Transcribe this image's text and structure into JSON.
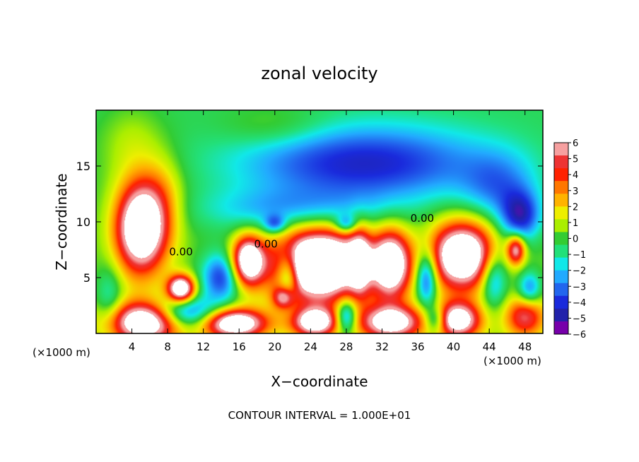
{
  "chart_data": {
    "type": "heatmap",
    "title": "zonal velocity",
    "xlabel": "X−coordinate",
    "ylabel": "Z−coordinate",
    "x_unit_left": "(×1000 m)",
    "x_unit_right": "(×1000 m)",
    "footer": "CONTOUR INTERVAL = 1.000E+01",
    "xlim": [
      0,
      50
    ],
    "ylim": [
      0,
      20
    ],
    "x_ticks": [
      4,
      8,
      12,
      16,
      20,
      24,
      28,
      32,
      36,
      40,
      44,
      48
    ],
    "y_ticks": [
      5,
      10,
      15
    ],
    "contour_labels": [
      {
        "text": "0.00",
        "x": 9.5,
        "y": 7.0
      },
      {
        "text": "0.00",
        "x": 19.0,
        "y": 7.7
      },
      {
        "text": "0.00",
        "x": 36.5,
        "y": 10.0
      }
    ],
    "colorbar": {
      "ticks": [
        "6",
        "5",
        "4",
        "3",
        "2",
        "1",
        "0",
        "−1",
        "−2",
        "−3",
        "−4",
        "−5",
        "−6"
      ],
      "range": [
        -6,
        6
      ],
      "colors": [
        "#f6a0a0",
        "#ee3333",
        "#ff2200",
        "#ff7700",
        "#ffb300",
        "#eeee00",
        "#aaee00",
        "#33cc33",
        "#22e07a",
        "#11e8e8",
        "#22aaff",
        "#2266ee",
        "#1a2adc",
        "#2222aa",
        "#7700aa"
      ]
    },
    "field_blobs": [
      {
        "x": 5,
        "y": 9.5,
        "rx": 2.8,
        "ry": 4.0,
        "v": 10
      },
      {
        "x": 9.5,
        "y": 4,
        "rx": 1.5,
        "ry": 1.2,
        "v": 9
      },
      {
        "x": 5.5,
        "y": 1,
        "rx": 4.0,
        "ry": 1.8,
        "v": 9
      },
      {
        "x": 15.5,
        "y": 0.9,
        "rx": 3.5,
        "ry": 1.3,
        "v": 9
      },
      {
        "x": 25,
        "y": 6.2,
        "rx": 5.0,
        "ry": 3.2,
        "v": 12
      },
      {
        "x": 17,
        "y": 6.5,
        "rx": 1.8,
        "ry": 2.2,
        "v": 9
      },
      {
        "x": 33,
        "y": 6.2,
        "rx": 2.2,
        "ry": 3.0,
        "v": 9
      },
      {
        "x": 41,
        "y": 7,
        "rx": 3.6,
        "ry": 3.0,
        "v": 10
      },
      {
        "x": 47,
        "y": 7.5,
        "rx": 1.0,
        "ry": 1.3,
        "v": 6
      },
      {
        "x": 33,
        "y": 1,
        "rx": 3.5,
        "ry": 1.5,
        "v": 8
      },
      {
        "x": 24.5,
        "y": 1,
        "rx": 2.5,
        "ry": 1.3,
        "v": 8
      },
      {
        "x": 40.5,
        "y": 1.2,
        "rx": 2.5,
        "ry": 1.6,
        "v": 8
      },
      {
        "x": 48,
        "y": 1.5,
        "rx": 2.2,
        "ry": 1.8,
        "v": 5
      },
      {
        "x": 21,
        "y": 3.2,
        "rx": 1.2,
        "ry": 1.0,
        "v": 5
      },
      {
        "x": 29.5,
        "y": 6.5,
        "rx": 1.2,
        "ry": 3.0,
        "v": 5
      },
      {
        "x": 30,
        "y": 15.2,
        "rx": 14,
        "ry": 3.4,
        "v": -4.5
      },
      {
        "x": 47.5,
        "y": 10.5,
        "rx": 2.2,
        "ry": 2.2,
        "v": -4.5
      },
      {
        "x": 14,
        "y": 5,
        "rx": 2.2,
        "ry": 2.2,
        "v": -4.5
      },
      {
        "x": 10,
        "y": 1.8,
        "rx": 3.5,
        "ry": 1.5,
        "v": -5
      },
      {
        "x": 21.5,
        "y": 5.2,
        "rx": 1.2,
        "ry": 2.2,
        "v": -5
      },
      {
        "x": 28,
        "y": 1.5,
        "rx": 1.2,
        "ry": 1.5,
        "v": -5
      },
      {
        "x": 37,
        "y": 5,
        "rx": 1.2,
        "ry": 2.5,
        "v": -5
      },
      {
        "x": 38,
        "y": 1.2,
        "rx": 1.2,
        "ry": 1.2,
        "v": -4
      },
      {
        "x": 44.5,
        "y": 5,
        "rx": 1.5,
        "ry": 2.5,
        "v": -4
      },
      {
        "x": 48.5,
        "y": 4,
        "rx": 1.3,
        "ry": 1.5,
        "v": -3.5
      },
      {
        "x": 1.5,
        "y": 3,
        "rx": 1.5,
        "ry": 3.0,
        "v": -2
      },
      {
        "x": 22,
        "y": 11,
        "rx": 10,
        "ry": 2.0,
        "v": -2.5
      },
      {
        "x": 45,
        "y": 13,
        "rx": 4,
        "ry": 3.0,
        "v": -2.5
      },
      {
        "x": 28,
        "y": 9.8,
        "rx": 1.2,
        "ry": 0.8,
        "v": -3
      },
      {
        "x": 20,
        "y": 9.8,
        "rx": 1.2,
        "ry": 0.8,
        "v": -3
      },
      {
        "x": 4,
        "y": 17,
        "rx": 3.5,
        "ry": 3.5,
        "v": 1.3
      },
      {
        "x": 20,
        "y": 18.5,
        "rx": 6,
        "ry": 2.0,
        "v": 1.2
      },
      {
        "x": 7.5,
        "y": 12,
        "rx": 2.5,
        "ry": 4.0,
        "v": 2
      }
    ]
  }
}
